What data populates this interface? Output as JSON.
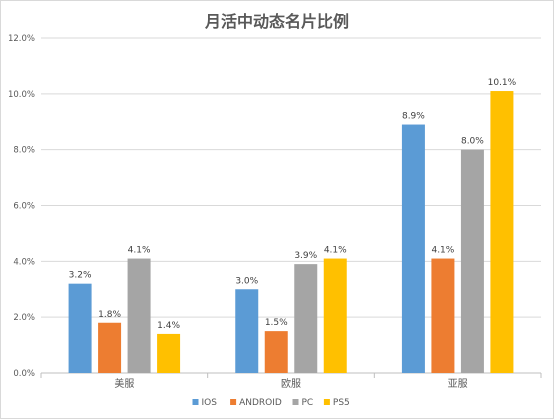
{
  "chart_data": {
    "type": "bar",
    "title": "月活中动态名片比例",
    "categories": [
      "美服",
      "欧服",
      "亚服"
    ],
    "series": [
      {
        "name": "IOS",
        "values": [
          3.2,
          3.0,
          8.9
        ],
        "labels": [
          "3.2%",
          "3.0%",
          "8.9%"
        ],
        "color": "#5b9bd5"
      },
      {
        "name": "ANDROID",
        "values": [
          1.8,
          1.5,
          4.1
        ],
        "labels": [
          "1.8%",
          "1.5%",
          "4.1%"
        ],
        "color": "#ed7d31"
      },
      {
        "name": "PC",
        "values": [
          4.1,
          3.9,
          8.0
        ],
        "labels": [
          "4.1%",
          "3.9%",
          "8.0%"
        ],
        "color": "#a5a5a5"
      },
      {
        "name": "PS5",
        "values": [
          1.4,
          4.1,
          10.1
        ],
        "labels": [
          "1.4%",
          "4.1%",
          "10.1%"
        ],
        "color": "#ffc000"
      }
    ],
    "yticks": [
      "0.0%",
      "2.0%",
      "4.0%",
      "6.0%",
      "8.0%",
      "10.0%",
      "12.0%"
    ],
    "ylim": [
      0,
      12
    ],
    "ytick_step": 2,
    "grid": true,
    "legend": "bottom",
    "xlabel": "",
    "ylabel": ""
  }
}
